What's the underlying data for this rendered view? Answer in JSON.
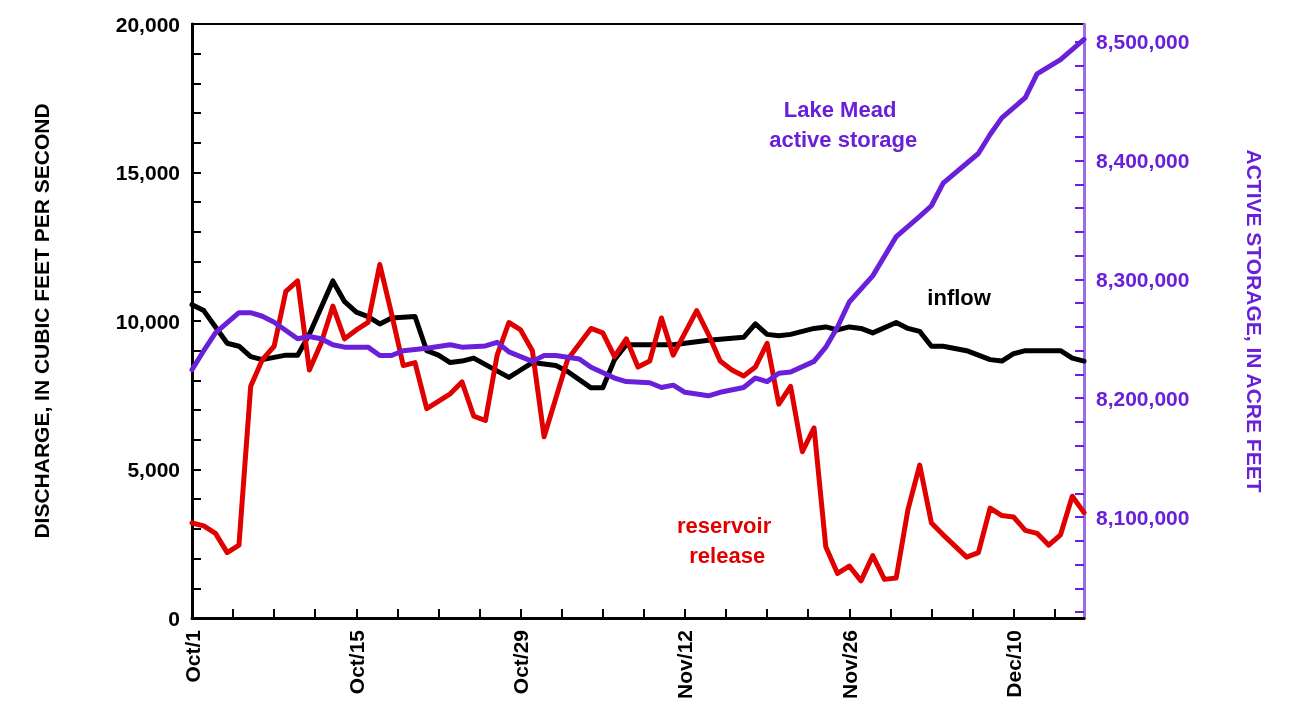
{
  "chart_data": {
    "type": "line",
    "ylabel": "DISCHARGE, IN CUBIC FEET PER SECOND",
    "y2label": "ACTIVE STORAGE, IN ACRE FEET",
    "xlim": [
      "--10-01",
      "--12-16"
    ],
    "xticks": [
      {
        "value": "--10-01",
        "label": "Oct/1"
      },
      {
        "value": "--10-04T12:00",
        "label": null
      },
      {
        "value": "--10-08",
        "label": null
      },
      {
        "value": "--10-11T12:00",
        "label": null
      },
      {
        "value": "--10-15",
        "label": "Oct/15"
      },
      {
        "value": "--10-18T12:00",
        "label": null
      },
      {
        "value": "--10-22",
        "label": null
      },
      {
        "value": "--10-25T12:00",
        "label": null
      },
      {
        "value": "--10-29",
        "label": "Oct/29"
      },
      {
        "value": "--11-01T12:00",
        "label": null
      },
      {
        "value": "--11-05",
        "label": null
      },
      {
        "value": "--11-08T12:00",
        "label": null
      },
      {
        "value": "--11-12",
        "label": "Nov/12"
      },
      {
        "value": "--11-15T12:00",
        "label": null
      },
      {
        "value": "--11-19",
        "label": null
      },
      {
        "value": "--11-22T12:00",
        "label": null
      },
      {
        "value": "--11-26",
        "label": "Nov/26"
      },
      {
        "value": "--11-29T12:00",
        "label": null
      },
      {
        "value": "--12-03",
        "label": null
      },
      {
        "value": "--12-06T12:00",
        "label": null
      },
      {
        "value": "--12-10",
        "label": "Dec/10"
      },
      {
        "value": "--12-13T12:00",
        "label": null
      }
    ],
    "ylim": [
      0,
      20000
    ],
    "yticks": [
      0,
      {
        "value": 1000,
        "label": null
      },
      {
        "value": 2000,
        "label": null
      },
      {
        "value": 3000,
        "label": null
      },
      {
        "value": 4000,
        "label": null
      },
      {
        "value": 5000,
        "label": "5,000"
      },
      {
        "value": 6000,
        "label": null
      },
      {
        "value": 7000,
        "label": null
      },
      {
        "value": 8000,
        "label": null
      },
      {
        "value": 9000,
        "label": null
      },
      {
        "value": 10000,
        "label": "10,000"
      },
      {
        "value": 11000,
        "label": null
      },
      {
        "value": 12000,
        "label": null
      },
      {
        "value": 13000,
        "label": null
      },
      {
        "value": 14000,
        "label": null
      },
      {
        "value": 15000,
        "label": "15,000"
      },
      {
        "value": 16000,
        "label": null
      },
      {
        "value": 17000,
        "label": null
      },
      {
        "value": 18000,
        "label": null
      },
      {
        "value": 19000,
        "label": null
      },
      {
        "value": 20000,
        "label": "20,000"
      }
    ],
    "y2lim": [
      8015000,
      8515000
    ],
    "y2ticks": [
      {
        "value": 8020000,
        "label": null
      },
      {
        "value": 8040000,
        "label": null
      },
      {
        "value": 8060000,
        "label": null
      },
      {
        "value": 8080000,
        "label": null
      },
      {
        "value": 8100000,
        "label": "8,100,000"
      },
      {
        "value": 8120000,
        "label": null
      },
      {
        "value": 8140000,
        "label": null
      },
      {
        "value": 8160000,
        "label": null
      },
      {
        "value": 8180000,
        "label": null
      },
      {
        "value": 8200000,
        "label": "8,200,000"
      },
      {
        "value": 8220000,
        "label": null
      },
      {
        "value": 8240000,
        "label": null
      },
      {
        "value": 8260000,
        "label": null
      },
      {
        "value": 8280000,
        "label": null
      },
      {
        "value": 8300000,
        "label": "8,300,000"
      },
      {
        "value": 8320000,
        "label": null
      },
      {
        "value": 8340000,
        "label": null
      },
      {
        "value": 8360000,
        "label": null
      },
      {
        "value": 8380000,
        "label": null
      },
      {
        "value": 8400000,
        "label": "8,400,000"
      },
      {
        "value": 8420000,
        "label": null
      },
      {
        "value": 8440000,
        "label": null
      },
      {
        "value": 8460000,
        "label": null
      },
      {
        "value": 8480000,
        "label": null
      },
      {
        "value": 8500000,
        "label": "8,500,000"
      }
    ],
    "grid": false,
    "legend": false,
    "marker": "none",
    "line_style": "solid",
    "series": [
      {
        "name": "inflow",
        "color": "#000000",
        "x": [
          "--10-01",
          "--10-02",
          "--10-03",
          "--10-04",
          "--10-05",
          "--10-06",
          "--10-07",
          "--10-09",
          "--10-10",
          "--10-11",
          "--10-13",
          "--10-14",
          "--10-15",
          "--10-16",
          "--10-17",
          "--10-18",
          "--10-20",
          "--10-21",
          "--10-22",
          "--10-23",
          "--10-24",
          "--10-25",
          "--10-28",
          "--10-29",
          "--10-30",
          "--11-01",
          "--11-02",
          "--11-04",
          "--11-05",
          "--11-06",
          "--11-07",
          "--11-09",
          "--11-11",
          "--11-14",
          "--11-17",
          "--11-18",
          "--11-19",
          "--11-20",
          "--11-21",
          "--11-23",
          "--11-24",
          "--11-25",
          "--11-26",
          "--11-27",
          "--11-28",
          "--11-30",
          "--12-01",
          "--12-02",
          "--12-03",
          "--12-04",
          "--12-06",
          "--12-08",
          "--12-09",
          "--12-10",
          "--12-11",
          "--12-12",
          "--12-14",
          "--12-15",
          "--12-16"
        ],
        "values": [
          10550,
          10350,
          9800,
          9250,
          9150,
          8800,
          8700,
          8850,
          8850,
          9550,
          11350,
          10650,
          10300,
          10150,
          9900,
          10100,
          10150,
          9000,
          8850,
          8600,
          8650,
          8750,
          8100,
          8350,
          8600,
          8500,
          8300,
          7750,
          7750,
          8700,
          9200,
          9200,
          9200,
          9350,
          9450,
          9900,
          9550,
          9500,
          9550,
          9750,
          9800,
          9700,
          9800,
          9750,
          9600,
          9950,
          9750,
          9650,
          9150,
          9150,
          9000,
          8700,
          8650,
          8900,
          9000,
          9000,
          9000,
          8750,
          8650
        ]
      },
      {
        "name": "reservoir release",
        "color": "#e00000",
        "x": [
          "--10-01",
          "--10-02",
          "--10-03",
          "--10-04",
          "--10-05",
          "--10-06",
          "--10-07",
          "--10-08",
          "--10-09",
          "--10-10",
          "--10-11",
          "--10-12",
          "--10-13",
          "--10-14",
          "--10-15",
          "--10-16",
          "--10-17",
          "--10-18",
          "--10-19",
          "--10-20",
          "--10-21",
          "--10-23",
          "--10-24",
          "--10-25",
          "--10-26",
          "--10-27",
          "--10-28",
          "--10-29",
          "--10-30",
          "--10-31",
          "--11-02",
          "--11-04",
          "--11-05",
          "--11-06",
          "--11-07",
          "--11-08",
          "--11-09",
          "--11-10",
          "--11-11",
          "--11-13",
          "--11-14",
          "--11-15",
          "--11-16",
          "--11-17",
          "--11-18",
          "--11-19",
          "--11-20",
          "--11-21",
          "--11-22",
          "--11-23",
          "--11-24",
          "--11-25",
          "--11-26",
          "--11-27",
          "--11-28",
          "--11-29",
          "--11-30",
          "--12-01",
          "--12-02",
          "--12-03",
          "--12-04",
          "--12-06",
          "--12-07",
          "--12-08",
          "--12-09",
          "--12-10",
          "--12-11",
          "--12-12",
          "--12-13",
          "--12-14",
          "--12-15",
          "--12-16"
        ],
        "values": [
          3200,
          3100,
          2850,
          2200,
          2450,
          7800,
          8700,
          9150,
          11000,
          11350,
          8350,
          9250,
          10500,
          9400,
          9700,
          9950,
          11900,
          10250,
          8500,
          8600,
          7050,
          7550,
          7950,
          6800,
          6650,
          8850,
          9950,
          9700,
          9000,
          6100,
          8700,
          9750,
          9600,
          8800,
          9400,
          8450,
          8650,
          10100,
          8850,
          10350,
          9550,
          8650,
          8350,
          8150,
          8450,
          9250,
          7200,
          7800,
          5600,
          6400,
          2400,
          1500,
          1750,
          1250,
          2100,
          1300,
          1350,
          3650,
          5150,
          3200,
          2800,
          2050,
          2200,
          3700,
          3450,
          3400,
          2950,
          2850,
          2450,
          2800,
          4100,
          3550
        ]
      },
      {
        "name": "Lake Mead active storage",
        "color": "#6a1fd8",
        "axis": "y2",
        "x": [
          "--10-01",
          "--10-02",
          "--10-03",
          "--10-05",
          "--10-06",
          "--10-07",
          "--10-08",
          "--10-10",
          "--10-11",
          "--10-12",
          "--10-13",
          "--10-14",
          "--10-16",
          "--10-17",
          "--10-18",
          "--10-19",
          "--10-21",
          "--10-23",
          "--10-24",
          "--10-26",
          "--10-27",
          "--10-28",
          "--10-30",
          "--10-31",
          "--11-01",
          "--11-03",
          "--11-04",
          "--11-06",
          "--11-07",
          "--11-09",
          "--11-10",
          "--11-11",
          "--11-12",
          "--11-14",
          "--11-15",
          "--11-17",
          "--11-18",
          "--11-19",
          "--11-20",
          "--11-21",
          "--11-23",
          "--11-24",
          "--11-25",
          "--11-26",
          "--11-28",
          "--11-30",
          "--12-02",
          "--12-03",
          "--12-04",
          "--12-07",
          "--12-08",
          "--12-09",
          "--12-11",
          "--12-12",
          "--12-14",
          "--12-16"
        ],
        "values": [
          8224000,
          8240000,
          8255000,
          8272000,
          8272000,
          8269000,
          8264000,
          8250000,
          8252000,
          8250000,
          8245000,
          8243000,
          8243000,
          8236000,
          8236000,
          8240000,
          8242000,
          8245000,
          8243000,
          8244000,
          8247000,
          8239000,
          8231000,
          8236000,
          8236000,
          8233000,
          8226000,
          8217000,
          8214000,
          8213000,
          8209000,
          8211000,
          8205000,
          8202000,
          8205000,
          8209000,
          8217000,
          8214000,
          8221000,
          8222000,
          8231000,
          8243000,
          8260000,
          8281000,
          8303000,
          8336000,
          8353000,
          8362000,
          8381000,
          8406000,
          8422000,
          8436000,
          8453000,
          8473000,
          8485000,
          8502000
        ]
      }
    ]
  }
}
